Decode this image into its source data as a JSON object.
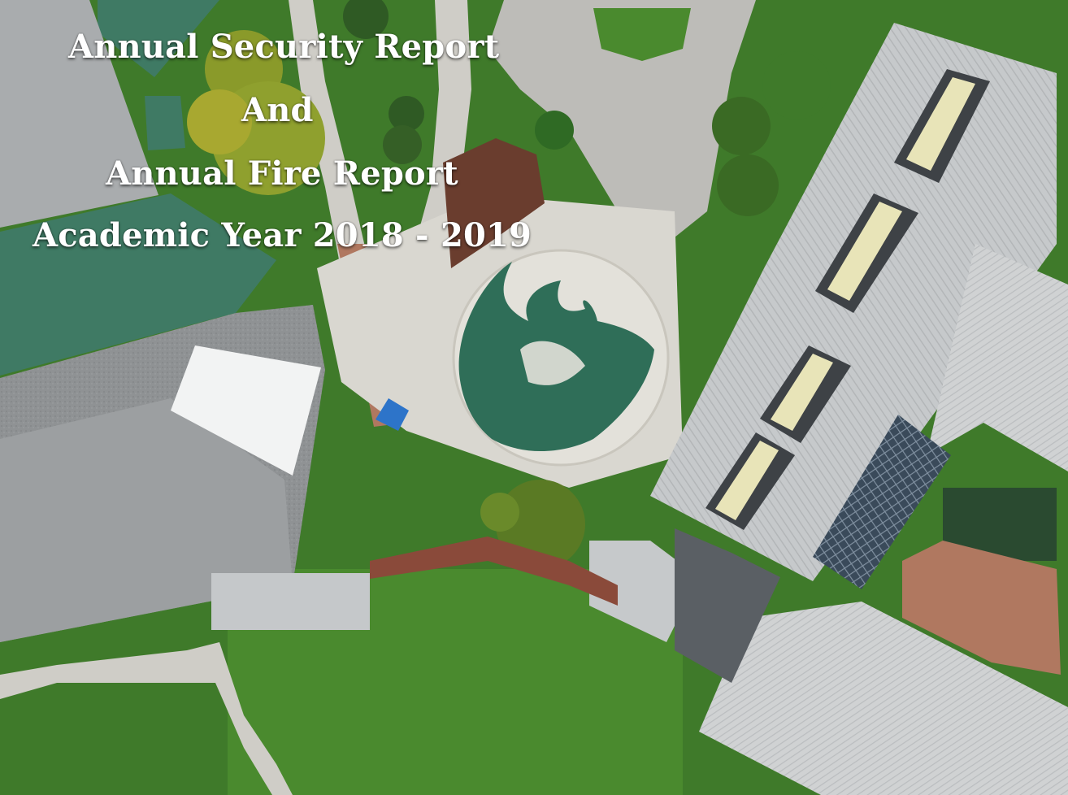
{
  "cover": {
    "title_lines": [
      "Annual Security Report",
      "And",
      "Annual Fire Report",
      "Academic Year 2018 - 2019"
    ]
  },
  "colors": {
    "title_text": "#ffffff",
    "grass": "#3f7a2a",
    "green_roof": "#3f7a64",
    "gray_roof": "#a9acae",
    "metal_roof": "#c9ccce",
    "concrete": "#d9d7d0",
    "plaza_logo_green": "#2f6e58",
    "canopy_blue": "#2d74c9",
    "brick_path": "#b07860",
    "mulch": "#6a3d2e"
  }
}
